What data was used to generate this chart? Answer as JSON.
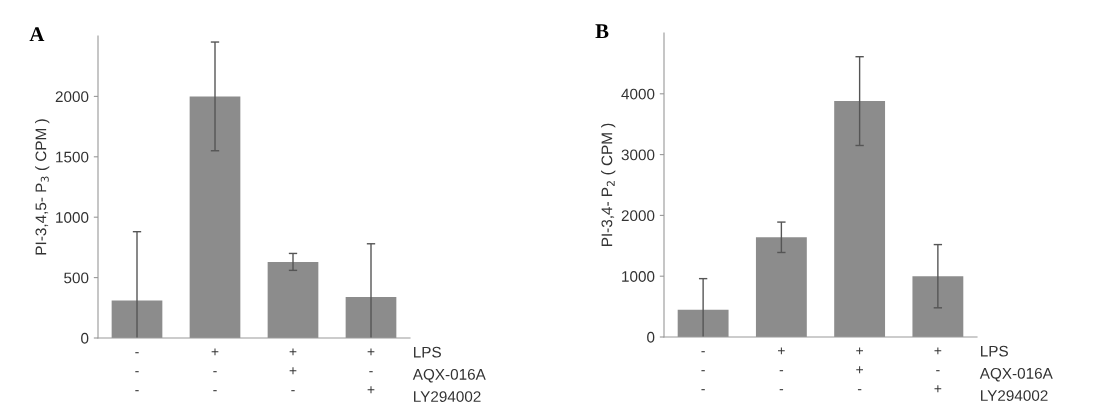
{
  "chart_data": [
    {
      "type": "bar",
      "title": "A",
      "ylabel": "PI-3,4,5- P$_{3}$ ( CPM )",
      "categories": [
        "-\n-\n-",
        "+\n-\n-",
        "+\n+\n-",
        "+\n-\n+"
      ],
      "values": [
        310,
        2000,
        630,
        340
      ],
      "errors": [
        570,
        450,
        70,
        440
      ],
      "color": "#8c8c8c",
      "ylim": [
        0,
        2500
      ],
      "yticks": [
        0,
        500,
        1000,
        1500,
        2000
      ],
      "grid": false,
      "annotations": [
        "LPS",
        "AQX-016A",
        "LY294002"
      ]
    },
    {
      "type": "bar",
      "title": "B",
      "ylabel": "PI-3,4- P$_{2}$ ( CPM )",
      "categories": [
        "-\n-\n-",
        "+\n-\n-",
        "+\n+\n-",
        "+\n-\n+"
      ],
      "values": [
        450,
        1640,
        3880,
        1000
      ],
      "errors": [
        510,
        250,
        730,
        520
      ],
      "color": "#8c8c8c",
      "ylim": [
        0,
        5000
      ],
      "yticks": [
        0,
        1000,
        2000,
        3000,
        4000
      ],
      "grid": false,
      "annotations": [
        "LPS",
        "AQX-016A",
        "LY294002"
      ]
    }
  ]
}
